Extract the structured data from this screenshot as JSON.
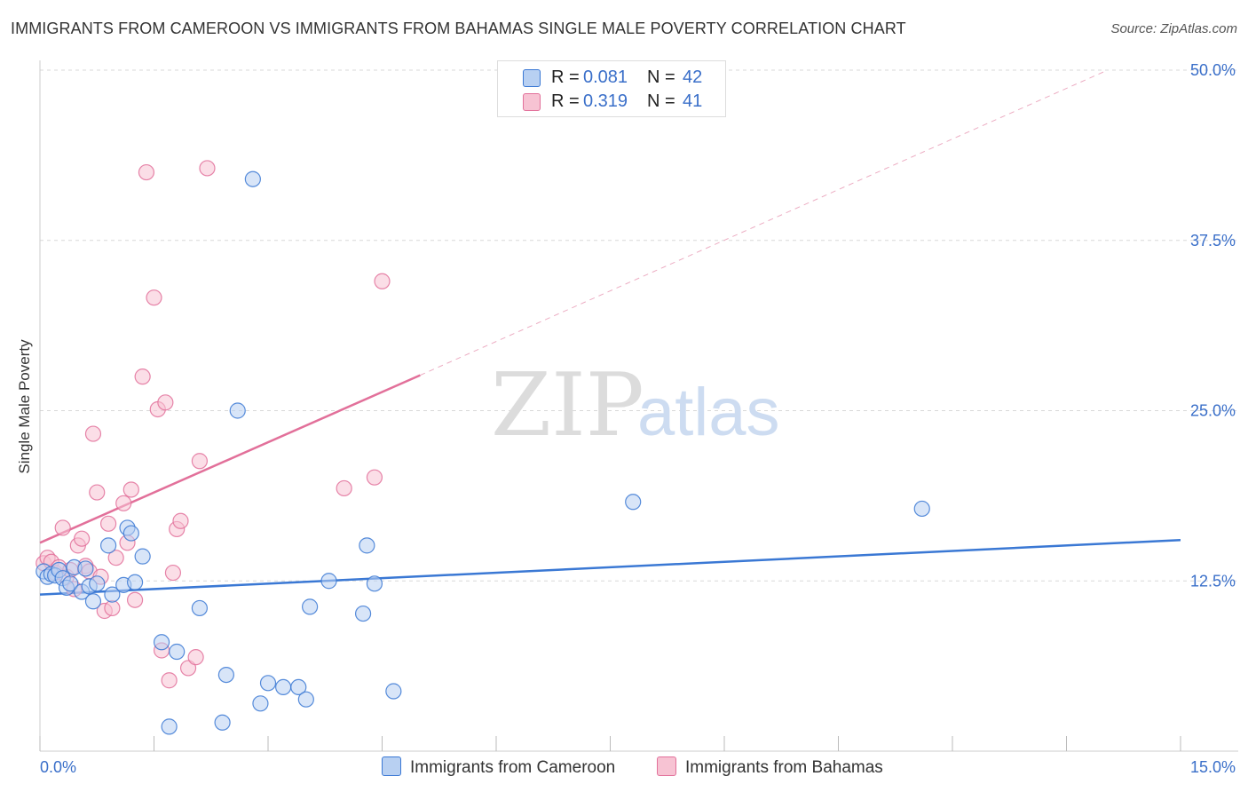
{
  "header": {
    "title": "IMMIGRANTS FROM CAMEROON VS IMMIGRANTS FROM BAHAMAS SINGLE MALE POVERTY CORRELATION CHART",
    "source": "Source: ZipAtlas.com"
  },
  "watermark": {
    "zip": "ZIP",
    "atlas": "atlas"
  },
  "legend": {
    "rows": [
      {
        "r_label": "R =",
        "r_value": "0.081",
        "n_label": "N =",
        "n_value": "42"
      },
      {
        "r_label": "R =",
        "r_value": "0.319",
        "n_label": "N =",
        "n_value": "41"
      }
    ]
  },
  "chart_data": {
    "type": "scatter",
    "title": "IMMIGRANTS FROM CAMEROON VS IMMIGRANTS FROM BAHAMAS SINGLE MALE POVERTY CORRELATION CHART",
    "xlabel": "",
    "ylabel": "Single Male Poverty",
    "xlim": [
      0,
      15
    ],
    "ylim": [
      0,
      50
    ],
    "x_tick_labels": [
      "0.0%",
      "15.0%"
    ],
    "y_ticks": [
      12.5,
      25.0,
      37.5,
      50.0
    ],
    "y_tick_labels": [
      "12.5%",
      "25.0%",
      "37.5%",
      "50.0%"
    ],
    "legend_position": "top-center",
    "colors": {
      "cameroon": "#3a78d4",
      "bahamas": "#e2709a",
      "cameroon_fill": "#b8d0f2",
      "bahamas_fill": "#f7c3d3",
      "tick": "#3a6fc9"
    },
    "series": [
      {
        "name": "Immigrants from Cameroon",
        "r": 0.081,
        "n": 42,
        "trend": {
          "x": [
            0,
            15
          ],
          "y": [
            11.5,
            15.5
          ]
        },
        "points": [
          [
            0.05,
            13.2
          ],
          [
            0.1,
            12.8
          ],
          [
            0.15,
            13.0
          ],
          [
            0.2,
            12.9
          ],
          [
            0.25,
            13.3
          ],
          [
            0.3,
            12.7
          ],
          [
            0.35,
            12.0
          ],
          [
            0.4,
            12.3
          ],
          [
            0.45,
            13.5
          ],
          [
            0.55,
            11.7
          ],
          [
            0.6,
            13.4
          ],
          [
            0.65,
            12.1
          ],
          [
            0.7,
            11.0
          ],
          [
            0.75,
            12.3
          ],
          [
            0.9,
            15.1
          ],
          [
            0.95,
            11.5
          ],
          [
            1.1,
            12.2
          ],
          [
            1.15,
            16.4
          ],
          [
            1.2,
            16.0
          ],
          [
            1.25,
            12.4
          ],
          [
            1.35,
            14.3
          ],
          [
            1.6,
            8.0
          ],
          [
            1.7,
            1.8
          ],
          [
            1.8,
            7.3
          ],
          [
            2.1,
            10.5
          ],
          [
            2.4,
            2.1
          ],
          [
            2.45,
            5.6
          ],
          [
            2.6,
            25.0
          ],
          [
            2.8,
            42.0
          ],
          [
            2.9,
            3.5
          ],
          [
            3.0,
            5.0
          ],
          [
            3.2,
            4.7
          ],
          [
            3.4,
            4.7
          ],
          [
            3.5,
            3.8
          ],
          [
            3.55,
            10.6
          ],
          [
            3.8,
            12.5
          ],
          [
            4.25,
            10.1
          ],
          [
            4.3,
            15.1
          ],
          [
            4.4,
            12.3
          ],
          [
            4.65,
            4.4
          ],
          [
            7.8,
            18.3
          ],
          [
            11.6,
            17.8
          ]
        ]
      },
      {
        "name": "Immigrants from Bahamas",
        "r": 0.319,
        "n": 41,
        "trend": {
          "x": [
            0,
            5
          ],
          "y": [
            15.3,
            27.6
          ]
        },
        "trend_extension": {
          "x": [
            5,
            14
          ],
          "y": [
            27.6,
            49.9
          ]
        },
        "points": [
          [
            0.05,
            13.8
          ],
          [
            0.1,
            14.2
          ],
          [
            0.15,
            13.9
          ],
          [
            0.2,
            13.1
          ],
          [
            0.25,
            13.5
          ],
          [
            0.3,
            16.4
          ],
          [
            0.35,
            12.8
          ],
          [
            0.4,
            13.3
          ],
          [
            0.45,
            11.9
          ],
          [
            0.5,
            15.1
          ],
          [
            0.55,
            15.6
          ],
          [
            0.6,
            13.6
          ],
          [
            0.65,
            13.2
          ],
          [
            0.7,
            23.3
          ],
          [
            0.75,
            19.0
          ],
          [
            0.8,
            12.8
          ],
          [
            0.85,
            10.3
          ],
          [
            0.9,
            16.7
          ],
          [
            0.95,
            10.5
          ],
          [
            1.0,
            14.2
          ],
          [
            1.1,
            18.2
          ],
          [
            1.15,
            15.3
          ],
          [
            1.2,
            19.2
          ],
          [
            1.25,
            11.1
          ],
          [
            1.35,
            27.5
          ],
          [
            1.4,
            42.5
          ],
          [
            1.5,
            33.3
          ],
          [
            1.55,
            25.1
          ],
          [
            1.6,
            7.4
          ],
          [
            1.65,
            25.6
          ],
          [
            1.7,
            5.2
          ],
          [
            1.75,
            13.1
          ],
          [
            1.8,
            16.3
          ],
          [
            1.85,
            16.9
          ],
          [
            1.95,
            6.1
          ],
          [
            2.05,
            6.9
          ],
          [
            2.1,
            21.3
          ],
          [
            2.2,
            42.8
          ],
          [
            4.0,
            19.3
          ],
          [
            4.4,
            20.1
          ],
          [
            4.5,
            34.5
          ]
        ]
      }
    ]
  },
  "bottom_legend": {
    "items": [
      {
        "label": "Immigrants from Cameroon"
      },
      {
        "label": "Immigrants from Bahamas"
      }
    ]
  }
}
